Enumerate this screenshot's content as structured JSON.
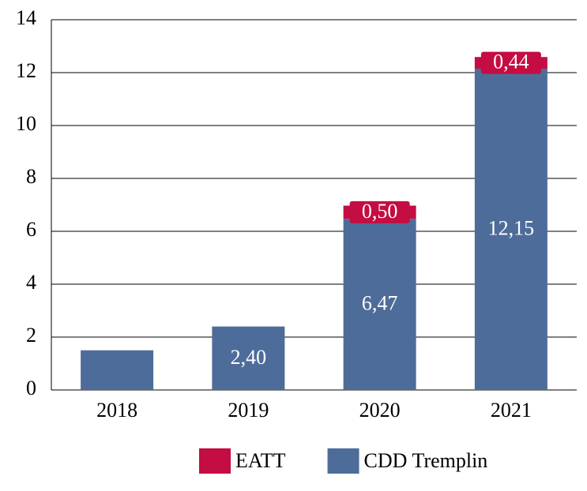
{
  "chart_data": {
    "type": "stacked-bar",
    "categories": [
      "2018",
      "2019",
      "2020",
      "2021"
    ],
    "series": [
      {
        "name": "CDD Tremplin",
        "color": "#4e6c9a",
        "values": [
          1.5,
          2.4,
          6.47,
          12.15
        ],
        "value_labels": [
          null,
          "2,40",
          "6,47",
          "12,15"
        ]
      },
      {
        "name": "EATT",
        "color": "#c40d42",
        "values": [
          null,
          null,
          0.5,
          0.44
        ],
        "value_labels": [
          null,
          null,
          "0,50",
          "0,44"
        ]
      }
    ],
    "ylim": [
      0,
      14
    ],
    "yticks": [
      0,
      2,
      4,
      6,
      8,
      10,
      12,
      14
    ],
    "grid": true,
    "legend": "bottom"
  }
}
